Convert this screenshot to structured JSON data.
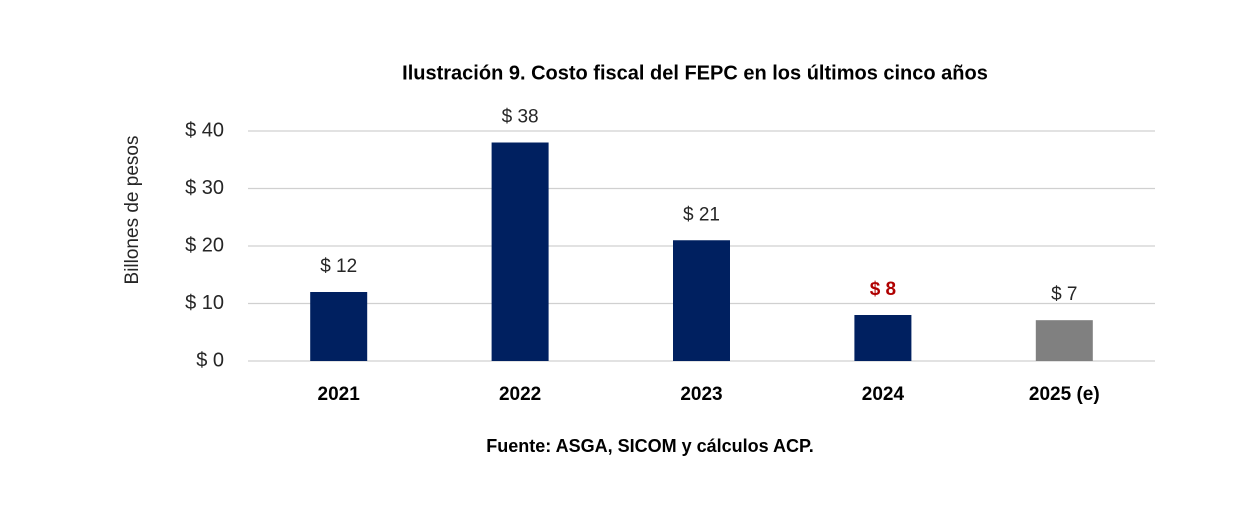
{
  "chart_data": {
    "type": "bar",
    "title": "Ilustración 9. Costo fiscal del FEPC en los últimos cinco años",
    "y_label": "Billones de pesos",
    "source": "Fuente: ASGA, SICOM y cálculos ACP.",
    "categories": [
      "2021",
      "2022",
      "2023",
      "2024",
      "2025 (e)"
    ],
    "values": [
      12,
      38,
      21,
      8,
      7.1
    ],
    "value_labels": [
      "$ 12",
      "$ 38",
      "$ 21",
      "$ 8",
      "$ 7"
    ],
    "colors": [
      "#002060",
      "#002060",
      "#002060",
      "#002060",
      "#808080"
    ],
    "label_colors": [
      "#262626",
      "#262626",
      "#262626",
      "#b00000",
      "#262626"
    ],
    "label_weights": [
      "normal",
      "normal",
      "normal",
      "bold",
      "normal"
    ],
    "ylim": [
      0,
      40
    ],
    "yticks": [
      {
        "value": 0,
        "label": "$ 0"
      },
      {
        "value": 10,
        "label": "$ 10"
      },
      {
        "value": 20,
        "label": "$ 20"
      },
      {
        "value": 30,
        "label": "$ 30"
      },
      {
        "value": 40,
        "label": "$ 40"
      }
    ],
    "grid": true
  }
}
